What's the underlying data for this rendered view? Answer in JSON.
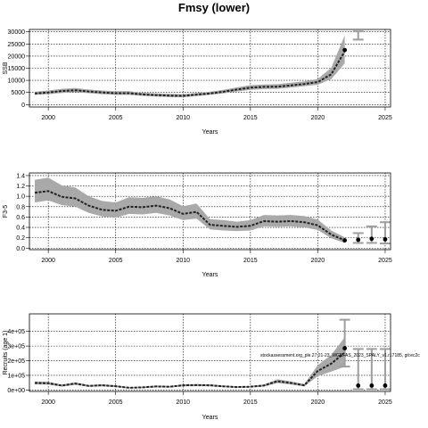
{
  "title": "Fmsy (lower)",
  "annotation": "stockassessment.org_ple.27.21-23_WGBFAS_2023_SPALY_v1.r17185, git:ec2c",
  "chart_data": [
    {
      "type": "line",
      "ylabel": "SSB",
      "xlabel": "Years",
      "xlim": [
        1998.6,
        2025.4
      ],
      "ylim": [
        -1000,
        31000
      ],
      "xticks": [
        2000,
        2005,
        2010,
        2015,
        2020,
        2025
      ],
      "xtick_labels": [
        "2000",
        "2005",
        "2010",
        "2015",
        "2020",
        "2025"
      ],
      "yticks": [
        0,
        5000,
        10000,
        15000,
        20000,
        25000,
        30000
      ],
      "ytick_labels": [
        "0",
        "5000",
        "10000",
        "15000",
        "20000",
        "25000",
        "30000"
      ],
      "grid": true,
      "series": [
        {
          "x": [
            1999,
            2000,
            2001,
            2002,
            2003,
            2004,
            2005,
            2006,
            2007,
            2008,
            2009,
            2010,
            2011,
            2012,
            2013,
            2014,
            2015,
            2016,
            2017,
            2018,
            2019,
            2020,
            2021,
            2022
          ],
          "estimate": [
            4600,
            5000,
            5600,
            5900,
            5400,
            5000,
            4700,
            4700,
            4200,
            3900,
            3700,
            3600,
            4100,
            4600,
            5300,
            6200,
            7000,
            7300,
            7400,
            7900,
            8500,
            9300,
            12500,
            22000
          ],
          "lower": [
            4000,
            4300,
            4800,
            5100,
            4700,
            4300,
            4000,
            4000,
            3600,
            3300,
            3100,
            3000,
            3500,
            4000,
            4600,
            5400,
            6100,
            6400,
            6500,
            7000,
            7600,
            8200,
            10500,
            17000
          ],
          "upper": [
            5300,
            5800,
            6500,
            6800,
            6200,
            5800,
            5500,
            5500,
            4900,
            4600,
            4400,
            4300,
            4800,
            5300,
            6100,
            7100,
            8000,
            8300,
            8400,
            9000,
            9600,
            10600,
            15200,
            28500
          ]
        }
      ],
      "forecast_points": [
        {
          "x": 2022,
          "y": 22500
        }
      ],
      "forecast_intervals": [
        {
          "x": 2023,
          "lower": 26800,
          "upper": 30200
        }
      ]
    },
    {
      "type": "line",
      "ylabel": "F3-5",
      "xlabel": "Years",
      "xlim": [
        1998.6,
        2025.4
      ],
      "ylim": [
        -0.03,
        1.45
      ],
      "xticks": [
        2000,
        2005,
        2010,
        2015,
        2020,
        2025
      ],
      "xtick_labels": [
        "2000",
        "2005",
        "2010",
        "2015",
        "2020",
        "2025"
      ],
      "yticks": [
        0.0,
        0.2,
        0.4,
        0.6,
        0.8,
        1.0,
        1.2,
        1.4
      ],
      "ytick_labels": [
        "0.0",
        "0.2",
        "0.4",
        "0.6",
        "0.8",
        "1.0",
        "1.2",
        "1.4"
      ],
      "grid": true,
      "series": [
        {
          "x": [
            1999,
            2000,
            2001,
            2002,
            2003,
            2004,
            2005,
            2006,
            2007,
            2008,
            2009,
            2010,
            2011,
            2012,
            2013,
            2014,
            2015,
            2016,
            2017,
            2018,
            2019,
            2020,
            2021,
            2022
          ],
          "estimate": [
            1.07,
            1.1,
            0.99,
            0.96,
            0.82,
            0.74,
            0.72,
            0.8,
            0.79,
            0.82,
            0.77,
            0.66,
            0.7,
            0.45,
            0.43,
            0.41,
            0.43,
            0.52,
            0.51,
            0.52,
            0.5,
            0.44,
            0.26,
            0.15
          ],
          "lower": [
            0.88,
            0.92,
            0.83,
            0.8,
            0.68,
            0.61,
            0.59,
            0.66,
            0.65,
            0.68,
            0.63,
            0.54,
            0.57,
            0.36,
            0.34,
            0.33,
            0.34,
            0.42,
            0.41,
            0.42,
            0.4,
            0.35,
            0.19,
            0.1
          ],
          "upper": [
            1.32,
            1.36,
            1.21,
            1.17,
            1.0,
            0.91,
            0.88,
            0.98,
            0.97,
            1.0,
            0.94,
            0.81,
            0.86,
            0.56,
            0.54,
            0.51,
            0.54,
            0.64,
            0.63,
            0.64,
            0.62,
            0.55,
            0.34,
            0.21
          ]
        }
      ],
      "forecast_points": [
        {
          "x": 2022,
          "y": 0.15
        },
        {
          "x": 2023,
          "y": 0.16
        },
        {
          "x": 2024,
          "y": 0.18
        },
        {
          "x": 2025,
          "y": 0.17
        }
      ],
      "forecast_intervals": [
        {
          "x": 2023,
          "lower": 0.1,
          "upper": 0.29
        },
        {
          "x": 2024,
          "lower": 0.1,
          "upper": 0.42
        },
        {
          "x": 2025,
          "lower": 0.09,
          "upper": 0.5
        }
      ]
    },
    {
      "type": "line",
      "ylabel": "Recruits (age 1)",
      "xlabel": "Years",
      "xlim": [
        1998.6,
        2025.4
      ],
      "ylim": [
        -10000,
        520000
      ],
      "xticks": [
        2000,
        2005,
        2010,
        2015,
        2020,
        2025
      ],
      "xtick_labels": [
        "2000",
        "2005",
        "2010",
        "2015",
        "2020",
        "2025"
      ],
      "yticks": [
        0,
        100000,
        200000,
        300000,
        400000
      ],
      "ytick_labels": [
        "0e+00",
        "1e+05",
        "2e+05",
        "3e+05",
        "4e+05"
      ],
      "grid": true,
      "series": [
        {
          "x": [
            1999,
            2000,
            2001,
            2002,
            2003,
            2004,
            2005,
            2006,
            2007,
            2008,
            2009,
            2010,
            2011,
            2012,
            2013,
            2014,
            2015,
            2016,
            2017,
            2018,
            2019,
            2020,
            2021,
            2022
          ],
          "estimate": [
            48000,
            46000,
            30000,
            44000,
            28000,
            32000,
            26000,
            15000,
            18000,
            24000,
            22000,
            32000,
            33000,
            32000,
            25000,
            20000,
            22000,
            30000,
            60000,
            48000,
            32000,
            130000,
            180000,
            255000
          ],
          "lower": [
            38000,
            36000,
            23000,
            35000,
            22000,
            25000,
            20000,
            11000,
            13000,
            18000,
            17000,
            25000,
            26000,
            25000,
            19000,
            15000,
            17000,
            23000,
            47000,
            37000,
            24000,
            95000,
            125000,
            160000
          ],
          "upper": [
            58000,
            56000,
            37000,
            53000,
            34000,
            39000,
            32000,
            19000,
            23000,
            30000,
            27000,
            39000,
            40000,
            39000,
            31000,
            25000,
            27000,
            37000,
            73000,
            59000,
            40000,
            170000,
            240000,
            360000
          ]
        }
      ],
      "forecast_points": [
        {
          "x": 2022,
          "y": 285000
        },
        {
          "x": 2023,
          "y": 30000
        },
        {
          "x": 2024,
          "y": 30000
        },
        {
          "x": 2025,
          "y": 30000
        }
      ],
      "forecast_intervals": [
        {
          "x": 2022,
          "lower": 160000,
          "upper": 480000
        },
        {
          "x": 2023,
          "lower": 5000,
          "upper": 280000
        },
        {
          "x": 2024,
          "lower": 5000,
          "upper": 280000
        },
        {
          "x": 2025,
          "lower": 5000,
          "upper": 280000
        }
      ]
    }
  ]
}
